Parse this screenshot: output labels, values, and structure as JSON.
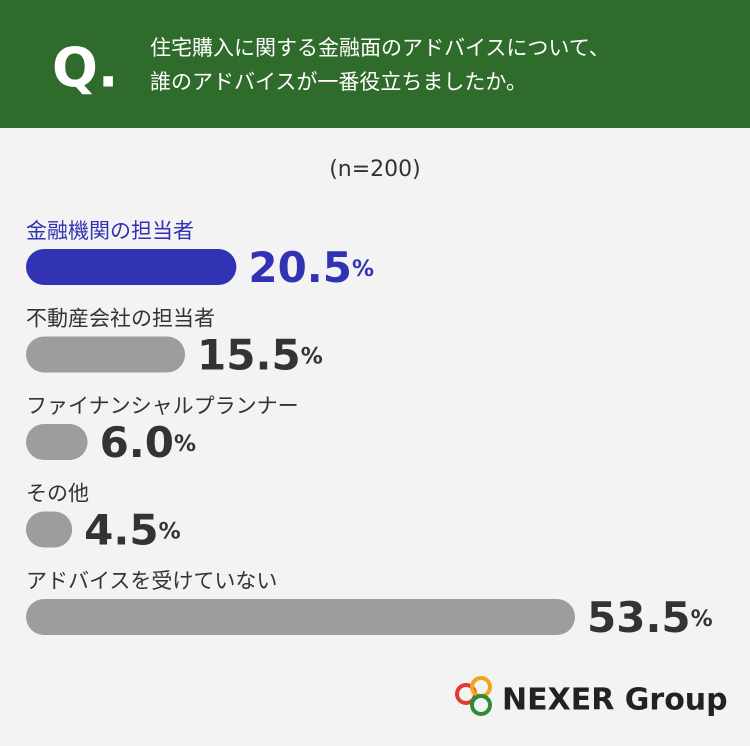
{
  "chart_data": {
    "type": "bar",
    "orientation": "horizontal",
    "question_mark": "Q.",
    "title": [
      "住宅購入に関する金融面のアドバイスについて、",
      "誰のアドバイスが一番役立ちましたか。"
    ],
    "subtitle": "(n=200)",
    "categories": [
      "金融機関の担当者",
      "不動産会社の担当者",
      "ファイナンシャルプランナー",
      "その他",
      "アドバイスを受けていない"
    ],
    "values": [
      20.5,
      15.5,
      6.0,
      4.5,
      53.5
    ],
    "value_labels": [
      "20.5%",
      "15.5%",
      "6.0%",
      "4.5%",
      "53.5%"
    ],
    "colors": [
      "#3232b4",
      "#9d9d9d",
      "#9d9d9d",
      "#9d9d9d",
      "#9d9d9d"
    ],
    "logo": "NEXER Group"
  }
}
